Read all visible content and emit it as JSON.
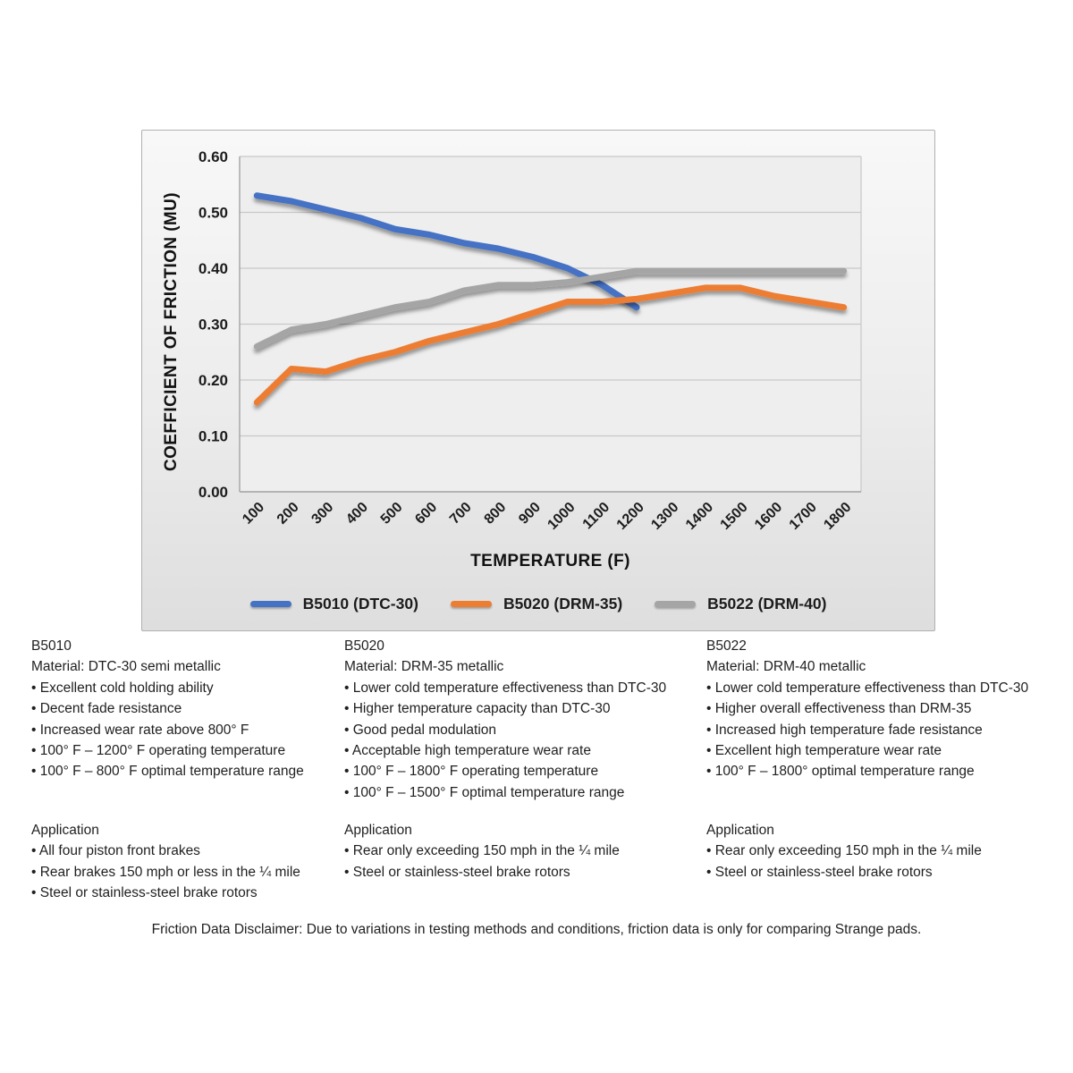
{
  "bullet_glyph": "•",
  "chart_data": {
    "type": "line",
    "title": "",
    "xlabel": "TEMPERATURE (F)",
    "ylabel": "COEFFICIENT OF FRICTION (MU)",
    "x_labels": [
      "100",
      "200",
      "300",
      "400",
      "500",
      "600",
      "700",
      "800",
      "900",
      "1000",
      "1100",
      "1200",
      "1300",
      "1400",
      "1500",
      "1600",
      "1700",
      "1800"
    ],
    "ylim": [
      0,
      0.6
    ],
    "y_ticks": [
      {
        "label": "0.00",
        "value": 0.0
      },
      {
        "label": "0.10",
        "value": 0.1
      },
      {
        "label": "0.20",
        "value": 0.2
      },
      {
        "label": "0.30",
        "value": 0.3
      },
      {
        "label": "0.40",
        "value": 0.4
      },
      {
        "label": "0.50",
        "value": 0.5
      },
      {
        "label": "0.60",
        "value": 0.6
      }
    ],
    "grid": true,
    "legend_position": "bottom",
    "series": [
      {
        "id": "b5010",
        "name": "B5010 (DTC-30)",
        "color": "#4472c4",
        "values": [
          0.53,
          0.52,
          0.505,
          0.49,
          0.47,
          0.46,
          0.445,
          0.435,
          0.42,
          0.4,
          0.37,
          0.33
        ]
      },
      {
        "id": "b5020",
        "name": "B5020 (DRM-35)",
        "color": "#ed7d31",
        "values": [
          0.16,
          0.22,
          0.215,
          0.235,
          0.25,
          0.27,
          0.285,
          0.3,
          0.32,
          0.34,
          0.34,
          0.345,
          0.355,
          0.365,
          0.365,
          0.35,
          0.34,
          0.33
        ]
      },
      {
        "id": "b5022",
        "name": "B5022 (DRM-40)",
        "color": "#a5a5a5",
        "values": [
          0.26,
          0.29,
          0.3,
          0.315,
          0.33,
          0.34,
          0.36,
          0.37,
          0.37,
          0.375,
          0.385,
          0.395,
          0.395,
          0.395,
          0.395,
          0.395,
          0.395,
          0.395
        ]
      }
    ],
    "colors": {
      "plot_bg": "#eeeeee",
      "gridline": "#c8c8c8",
      "axis": "#a3a3a3"
    }
  },
  "products": [
    {
      "id": "B5010",
      "material": "Material: DTC-30 semi metallic",
      "features": [
        "Excellent cold holding ability",
        "Decent fade resistance",
        "Increased wear rate above 800° F",
        "100° F – 1200° F operating temperature",
        "100° F – 800° F optimal temperature range"
      ],
      "application_title": "Application",
      "applications": [
        "All four piston front brakes",
        "Rear brakes 150 mph or less in the ¼ mile",
        "Steel or stainless-steel brake rotors"
      ]
    },
    {
      "id": "B5020",
      "material": "Material: DRM-35 metallic",
      "features": [
        "Lower cold temperature effectiveness than DTC-30",
        "Higher temperature capacity than DTC-30",
        "Good pedal modulation",
        "Acceptable high temperature wear rate",
        "100° F – 1800° F operating temperature",
        "100° F – 1500° F optimal temperature range"
      ],
      "application_title": "Application",
      "applications": [
        "Rear only exceeding 150 mph in the ¼ mile",
        "Steel or stainless-steel brake rotors"
      ]
    },
    {
      "id": "B5022",
      "material": "Material: DRM-40 metallic",
      "features": [
        "Lower cold temperature effectiveness than DTC-30",
        "Higher overall effectiveness than DRM-35",
        "Increased high temperature fade resistance",
        "Excellent high temperature wear rate",
        "100° F – 1800° optimal temperature range"
      ],
      "application_title": "Application",
      "applications": [
        "Rear only exceeding 150 mph in the ¼ mile",
        "Steel or stainless-steel brake rotors"
      ]
    }
  ],
  "disclaimer": "Friction Data Disclaimer:  Due to variations in testing methods and conditions, friction data is only for comparing Strange pads."
}
